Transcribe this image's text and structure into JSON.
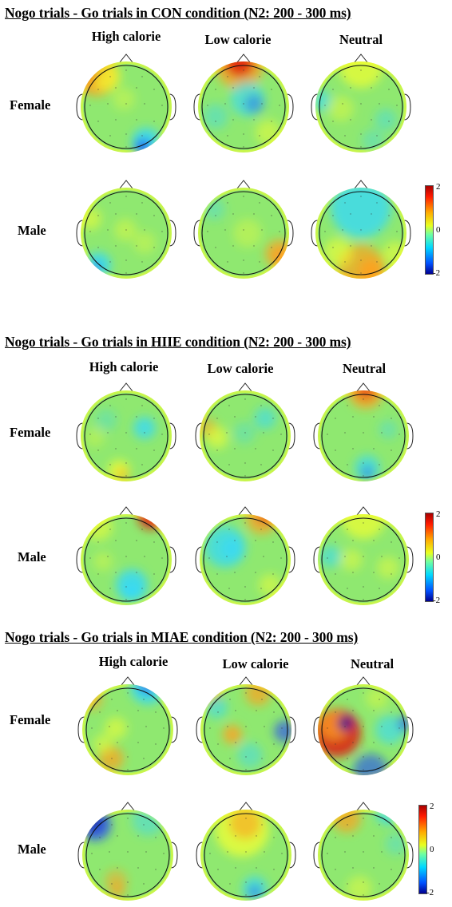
{
  "panels": [
    {
      "title": "Nogo trials - Go trials in CON condition (N2: 200 - 300 ms)",
      "columns": [
        "High calorie",
        "Low calorie",
        "Neutral"
      ],
      "rows": [
        "Female",
        "Male"
      ]
    },
    {
      "title": "Nogo trials - Go trials in HIIE condition (N2: 200 - 300 ms)",
      "columns": [
        "High calorie",
        "Low calorie",
        "Neutral"
      ],
      "rows": [
        "Female",
        "Male"
      ]
    },
    {
      "title": "Nogo trials - Go trials in MIAE condition (N2: 200 - 300 ms)",
      "columns": [
        "High calorie",
        "Low calorie",
        "Neutral"
      ],
      "rows": [
        "Female",
        "Male"
      ]
    }
  ],
  "colorbar": {
    "max": "2",
    "mid": "0",
    "min": "-2"
  },
  "colors": {
    "red": "#e01a10",
    "orange": "#ffa020",
    "yellow": "#f4ff30",
    "green": "#8fe870",
    "cyan": "#30d8ff",
    "blue": "#1a3cff",
    "dark_blue": "#000090"
  }
}
